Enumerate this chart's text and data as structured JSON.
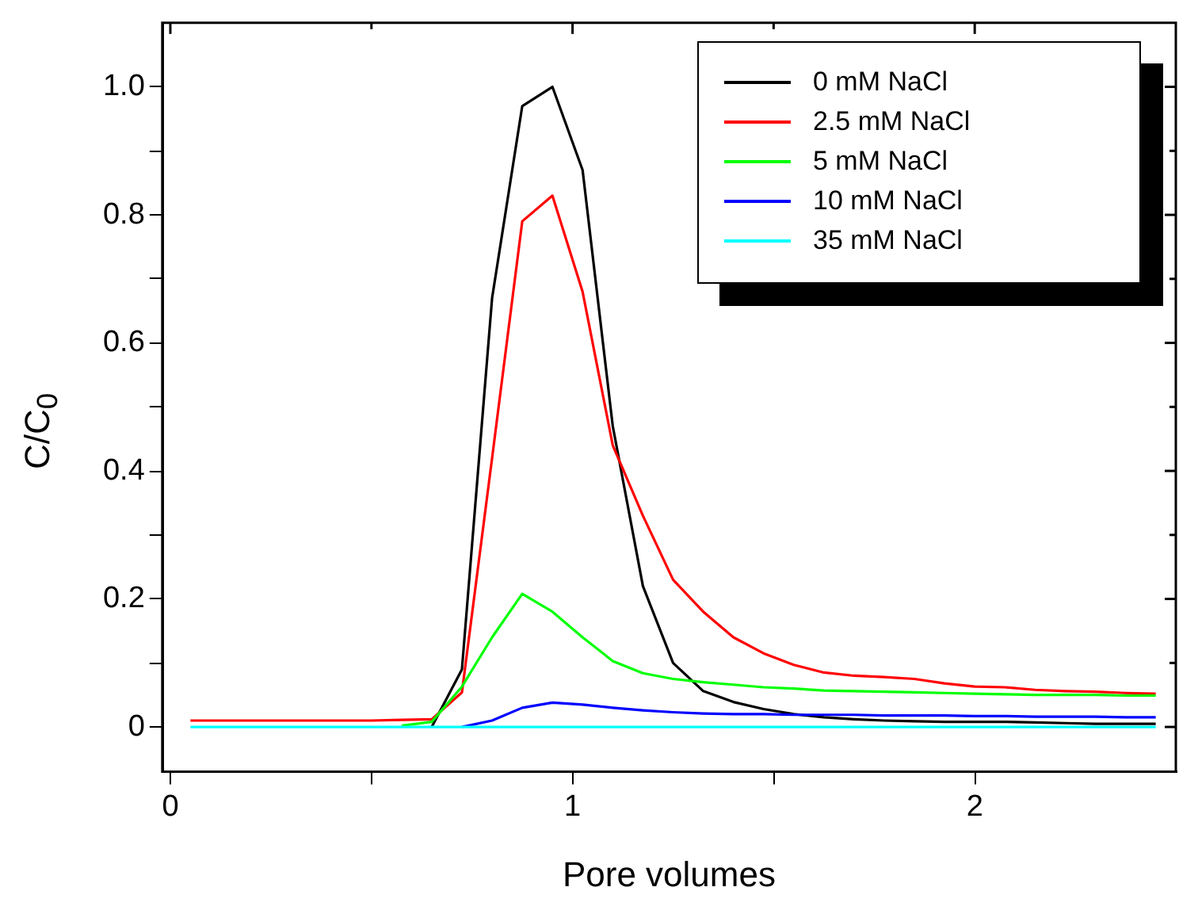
{
  "chart_data": {
    "type": "line",
    "xlabel": "Pore volumes",
    "ylabel": "C/C$_{0}$",
    "x": [
      0.05,
      0.125,
      0.2,
      0.275,
      0.35,
      0.425,
      0.5,
      0.575,
      0.65,
      0.725,
      0.8,
      0.875,
      0.95,
      1.025,
      1.1,
      1.175,
      1.25,
      1.325,
      1.4,
      1.475,
      1.55,
      1.625,
      1.7,
      1.775,
      1.85,
      1.925,
      2.0,
      2.075,
      2.15,
      2.225,
      2.3,
      2.375,
      2.45
    ],
    "series": [
      {
        "name": "0 mM NaCl",
        "color": "#000000",
        "values": [
          null,
          null,
          null,
          null,
          null,
          null,
          null,
          null,
          0,
          0.09,
          0.67,
          0.97,
          1.0,
          0.87,
          0.47,
          0.22,
          0.1,
          0.056,
          0.039,
          0.028,
          0.02,
          0.015,
          0.012,
          0.01,
          0.009,
          0.008,
          0.008,
          0.008,
          0.007,
          0.006,
          0.005,
          0.005,
          0.005
        ]
      },
      {
        "name": "2.5 mM NaCl",
        "color": "#ff0000",
        "values": [
          0.01,
          0.01,
          0.01,
          0.01,
          0.01,
          0.01,
          0.01,
          0.011,
          0.012,
          0.054,
          0.42,
          0.79,
          0.83,
          0.68,
          0.44,
          0.33,
          0.23,
          0.18,
          0.14,
          0.115,
          0.097,
          0.085,
          0.08,
          0.078,
          0.075,
          0.068,
          0.063,
          0.062,
          0.058,
          0.056,
          0.055,
          0.053,
          0.052
        ]
      },
      {
        "name": "5 mM NaCl",
        "color": "#00ff00",
        "values": [
          null,
          null,
          null,
          null,
          null,
          null,
          null,
          0.002,
          0.008,
          0.063,
          0.14,
          0.208,
          0.18,
          0.14,
          0.103,
          0.084,
          0.075,
          0.07,
          0.066,
          0.062,
          0.06,
          0.057,
          0.056,
          0.055,
          0.054,
          0.053,
          0.052,
          0.051,
          0.05,
          0.05,
          0.05,
          0.049,
          0.049
        ]
      },
      {
        "name": "10 mM NaCl",
        "color": "#0000ff",
        "values": [
          null,
          null,
          null,
          null,
          null,
          null,
          null,
          null,
          null,
          0,
          0.01,
          0.03,
          0.038,
          0.035,
          0.03,
          0.026,
          0.023,
          0.021,
          0.02,
          0.02,
          0.019,
          0.019,
          0.019,
          0.018,
          0.018,
          0.018,
          0.017,
          0.017,
          0.016,
          0.016,
          0.016,
          0.015,
          0.015
        ]
      },
      {
        "name": "35 mM NaCl",
        "color": "#00ffff",
        "values": [
          0,
          0,
          0,
          0,
          0,
          0,
          0,
          0,
          0,
          0,
          0,
          0,
          0,
          0,
          0,
          0,
          0,
          0,
          0,
          0,
          0,
          0,
          0,
          0,
          0,
          0,
          0,
          0,
          0,
          0,
          0,
          0,
          0
        ]
      }
    ],
    "xlim": [
      -0.02,
      2.5
    ],
    "xticks": [
      0,
      {
        "value": 0.5,
        "label": null
      },
      1,
      {
        "value": 1.5,
        "label": null
      },
      2
    ],
    "ylim": [
      -0.07,
      1.1
    ],
    "yticks": [
      0,
      {
        "value": 0.1,
        "label": null
      },
      "0.2",
      {
        "value": 0.3,
        "label": null
      },
      0.4,
      {
        "value": 0.5,
        "label": null
      },
      0.6,
      {
        "value": 0.7,
        "label": null
      },
      0.8,
      {
        "value": 0.9,
        "label": null
      },
      {
        "value": 1.0,
        "label": "1.0"
      }
    ],
    "grid": false,
    "legend": "top right",
    "marker": "none",
    "line_style": "solid"
  }
}
